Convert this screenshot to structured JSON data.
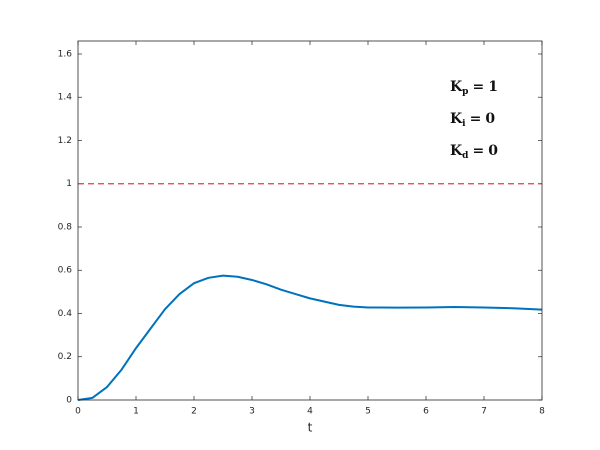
{
  "chart_data": {
    "type": "line",
    "xlabel": "t",
    "x": [
      0,
      0.25,
      0.5,
      0.75,
      1,
      1.25,
      1.5,
      1.75,
      2,
      2.25,
      2.5,
      2.75,
      3,
      3.25,
      3.5,
      3.75,
      4,
      4.25,
      4.5,
      4.75,
      5,
      5.5,
      6,
      6.5,
      7,
      7.5,
      8
    ],
    "series": [
      {
        "color": "#0072bd",
        "values": [
          0,
          0.01,
          0.06,
          0.14,
          0.24,
          0.33,
          0.42,
          0.49,
          0.54,
          0.565,
          0.575,
          0.57,
          0.555,
          0.535,
          0.51,
          0.49,
          0.47,
          0.455,
          0.44,
          0.432,
          0.428,
          0.427,
          0.428,
          0.43,
          0.428,
          0.424,
          0.418
        ]
      }
    ],
    "reference": {
      "value": 1,
      "color": "#e8383d"
    },
    "annotations": [
      {
        "base": "K",
        "sub": "p",
        "op": "=",
        "value": 1
      },
      {
        "base": "K",
        "sub": "i",
        "op": "=",
        "value": 0
      },
      {
        "base": "K",
        "sub": "d",
        "op": "=",
        "value": 0
      }
    ],
    "xlim": [
      0,
      8
    ],
    "xticks": [
      0,
      1,
      2,
      3,
      4,
      5,
      6,
      7,
      8
    ],
    "ylim": [
      0,
      1.66
    ],
    "yticks": [
      0,
      0.2,
      0.4,
      0.6,
      0.8,
      1,
      1.2,
      1.4,
      1.6
    ]
  }
}
